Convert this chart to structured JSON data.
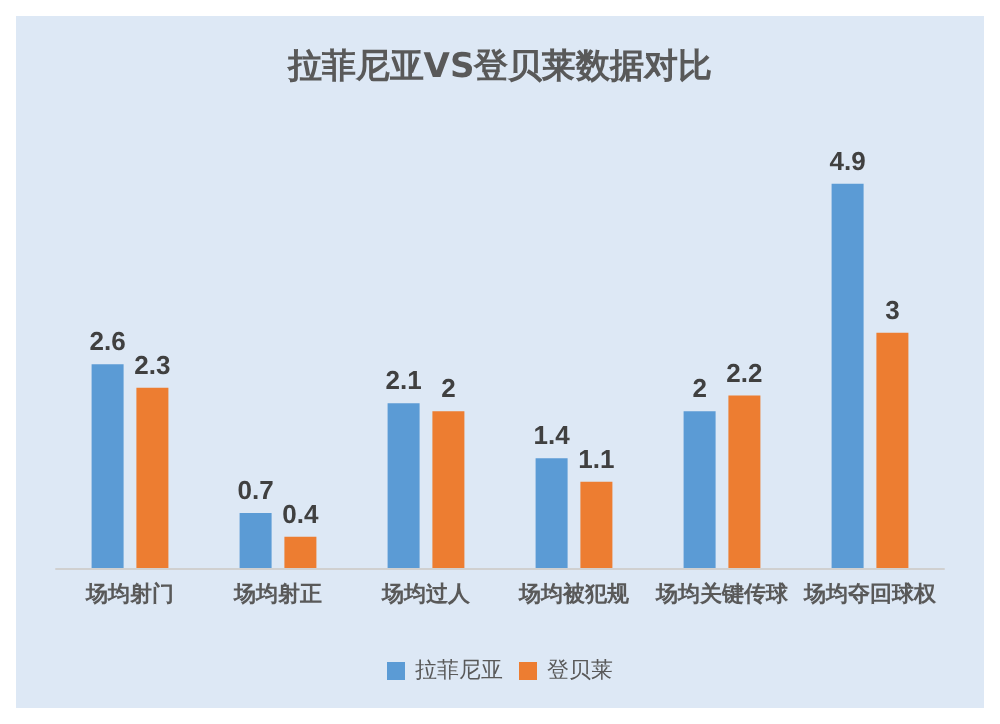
{
  "chart_data": {
    "type": "bar",
    "title": "拉菲尼亚VS登贝莱数据对比",
    "categories": [
      "场均射门",
      "场均射正",
      "场均过人",
      "场均被犯规",
      "场均关键传球",
      "场均夺回球权"
    ],
    "series": [
      {
        "name": "拉菲尼亚",
        "color": "#5b9bd5",
        "values": [
          2.6,
          0.7,
          2.1,
          1.4,
          2.0,
          4.9
        ]
      },
      {
        "name": "登贝莱",
        "color": "#ed7d31",
        "values": [
          2.3,
          0.4,
          2.0,
          1.1,
          2.2,
          3
        ]
      }
    ],
    "data_labels": true,
    "legend": "bottom"
  }
}
